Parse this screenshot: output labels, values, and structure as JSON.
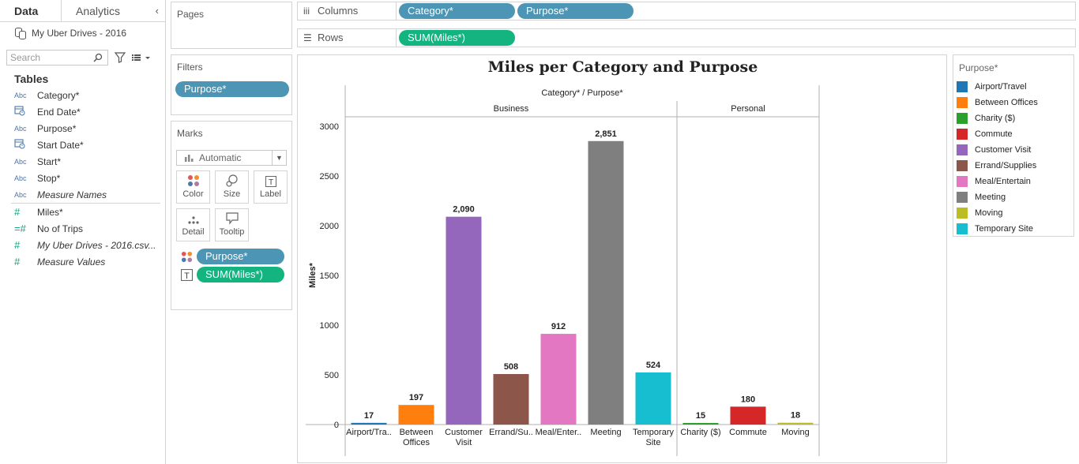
{
  "data_pane": {
    "tabs": [
      {
        "label": "Data",
        "active": true
      },
      {
        "label": "Analytics",
        "active": false
      }
    ],
    "collapse_glyph": "‹",
    "datasource_name": "My Uber Drives - 2016",
    "search_placeholder": "Search",
    "tables_heading": "Tables",
    "dimensions": [
      {
        "type": "Abc",
        "name": "Category*",
        "italic": false
      },
      {
        "type": "date",
        "name": "End Date*",
        "italic": false
      },
      {
        "type": "Abc",
        "name": "Purpose*",
        "italic": false
      },
      {
        "type": "date",
        "name": "Start Date*",
        "italic": false
      },
      {
        "type": "Abc",
        "name": "Start*",
        "italic": false
      },
      {
        "type": "Abc",
        "name": "Stop*",
        "italic": false
      },
      {
        "type": "Abc",
        "name": "Measure Names",
        "italic": true
      }
    ],
    "measures": [
      {
        "type": "#",
        "name": "Miles*",
        "italic": false
      },
      {
        "type": "=#",
        "name": "No of Trips",
        "italic": false
      },
      {
        "type": "#",
        "name": "My Uber Drives - 2016.csv...",
        "italic": true
      },
      {
        "type": "#",
        "name": "Measure Values",
        "italic": true
      }
    ]
  },
  "cards": {
    "pages_title": "Pages",
    "filters_title": "Filters",
    "filter_pills": [
      "Purpose*"
    ],
    "marks_title": "Marks",
    "mark_type": "Automatic",
    "mark_buttons": [
      {
        "label": "Color",
        "icon": "color-icon"
      },
      {
        "label": "Size",
        "icon": "size-icon"
      },
      {
        "label": "Label",
        "icon": "label-icon"
      },
      {
        "label": "Detail",
        "icon": "detail-icon"
      },
      {
        "label": "Tooltip",
        "icon": "tooltip-icon"
      }
    ],
    "mark_pills": [
      {
        "label": "Purpose*",
        "kind": "color",
        "color": "blue"
      },
      {
        "label": "SUM(Miles*)",
        "kind": "label",
        "color": "green"
      }
    ]
  },
  "shelves": {
    "columns_label": "Columns",
    "columns_glyph": "iii",
    "columns_pills": [
      "Category*",
      "Purpose*"
    ],
    "rows_label": "Rows",
    "rows_glyph": "☰",
    "rows_pills": [
      "SUM(Miles*)"
    ]
  },
  "legend": {
    "title": "Purpose*",
    "items": [
      {
        "label": "Airport/Travel",
        "color": "#1f77b4"
      },
      {
        "label": "Between Offices",
        "color": "#ff7f0e"
      },
      {
        "label": "Charity ($)",
        "color": "#2ca02c"
      },
      {
        "label": "Commute",
        "color": "#d62728"
      },
      {
        "label": "Customer Visit",
        "color": "#9467bd"
      },
      {
        "label": "Errand/Supplies",
        "color": "#8c564b"
      },
      {
        "label": "Meal/Entertain",
        "color": "#e377c2"
      },
      {
        "label": "Meeting",
        "color": "#7f7f7f"
      },
      {
        "label": "Moving",
        "color": "#bcbd22"
      },
      {
        "label": "Temporary Site",
        "color": "#17becf"
      }
    ]
  },
  "chart_data": {
    "type": "bar",
    "title": "Miles per Category and Purpose",
    "header_label": "Category*  /  Purpose*",
    "ylabel": "Miles*",
    "ylim": [
      0,
      3000
    ],
    "yticks": [
      0,
      500,
      1000,
      1500,
      2000,
      2500,
      3000
    ],
    "groups": [
      {
        "name": "Business",
        "bars": [
          {
            "label": [
              "Airport/Tra.."
            ],
            "value": 17,
            "display": "17",
            "color": "#1f77b4"
          },
          {
            "label": [
              "Between",
              "Offices"
            ],
            "value": 197,
            "display": "197",
            "color": "#ff7f0e"
          },
          {
            "label": [
              "Customer",
              "Visit"
            ],
            "value": 2090,
            "display": "2,090",
            "color": "#9467bd"
          },
          {
            "label": [
              "Errand/Su.."
            ],
            "value": 508,
            "display": "508",
            "color": "#8c564b"
          },
          {
            "label": [
              "Meal/Enter.."
            ],
            "value": 912,
            "display": "912",
            "color": "#e377c2"
          },
          {
            "label": [
              "Meeting"
            ],
            "value": 2851,
            "display": "2,851",
            "color": "#7f7f7f"
          },
          {
            "label": [
              "Temporary",
              "Site"
            ],
            "value": 524,
            "display": "524",
            "color": "#17becf"
          }
        ]
      },
      {
        "name": "Personal",
        "bars": [
          {
            "label": [
              "Charity ($)"
            ],
            "value": 15,
            "display": "15",
            "color": "#2ca02c"
          },
          {
            "label": [
              "Commute"
            ],
            "value": 180,
            "display": "180",
            "color": "#d62728"
          },
          {
            "label": [
              "Moving"
            ],
            "value": 18,
            "display": "18",
            "color": "#bcbd22"
          }
        ]
      }
    ]
  }
}
